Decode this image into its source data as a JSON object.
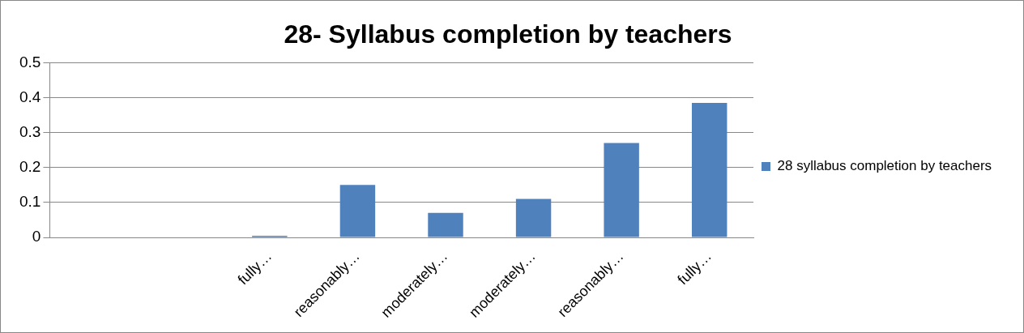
{
  "chart_data": {
    "type": "bar",
    "title": "28- Syllabus completion by teachers",
    "categories": [
      null,
      null,
      "fully…",
      "reasonably…",
      "moderately…",
      "moderately…",
      "reasonably…",
      "fully…"
    ],
    "series": [
      {
        "name": "28 syllabus completion by teachers",
        "color": "#4f81bd",
        "values": [
          0,
          0,
          0.005,
          0.15,
          0.07,
          0.11,
          0.27,
          0.385
        ]
      }
    ],
    "ylim": [
      0,
      0.5
    ],
    "yticks": [
      0,
      0.1,
      0.2,
      0.3,
      0.4,
      0.5
    ],
    "grid": "y",
    "legend": "right"
  }
}
